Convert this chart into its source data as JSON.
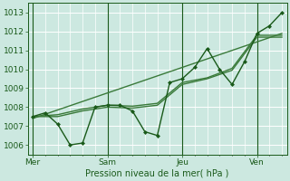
{
  "title": "",
  "xlabel": "Pression niveau de la mer( hPa )",
  "ylabel": "",
  "bg_color": "#cce8e0",
  "grid_color": "#ffffff",
  "line_color": "#3a7a3a",
  "line_color_dark": "#1a5a1a",
  "ylim": [
    1005.5,
    1013.5
  ],
  "yticks": [
    1006,
    1007,
    1008,
    1009,
    1010,
    1011,
    1012,
    1013
  ],
  "day_labels": [
    "Mer",
    "Sam",
    "Jeu",
    "Ven"
  ],
  "day_positions": [
    0,
    30,
    60,
    90
  ],
  "xlim": [
    -2,
    102
  ],
  "series1_x": [
    0,
    5,
    10,
    15,
    20,
    25,
    30,
    35,
    40,
    45,
    50,
    55,
    60,
    65,
    70,
    75,
    80,
    85,
    90,
    95,
    100
  ],
  "series1_y": [
    1007.5,
    1007.7,
    1007.1,
    1006.0,
    1006.1,
    1008.0,
    1008.1,
    1008.1,
    1007.8,
    1006.7,
    1006.5,
    1009.3,
    1009.5,
    1010.1,
    1011.1,
    1010.0,
    1009.2,
    1010.4,
    1011.9,
    1012.3,
    1013.0
  ],
  "series2_x": [
    0,
    10,
    20,
    30,
    40,
    50,
    60,
    70,
    80,
    90,
    100
  ],
  "series2_y": [
    1007.5,
    1007.6,
    1007.9,
    1008.1,
    1008.05,
    1008.2,
    1009.3,
    1009.55,
    1010.05,
    1011.8,
    1011.8
  ],
  "series3_x": [
    0,
    10,
    20,
    30,
    40,
    50,
    60,
    70,
    80,
    90,
    100
  ],
  "series3_y": [
    1007.5,
    1007.5,
    1007.8,
    1008.0,
    1007.95,
    1008.1,
    1009.2,
    1009.5,
    1009.95,
    1011.7,
    1011.7
  ],
  "trend_x": [
    0,
    100
  ],
  "trend_y": [
    1007.4,
    1011.9
  ]
}
